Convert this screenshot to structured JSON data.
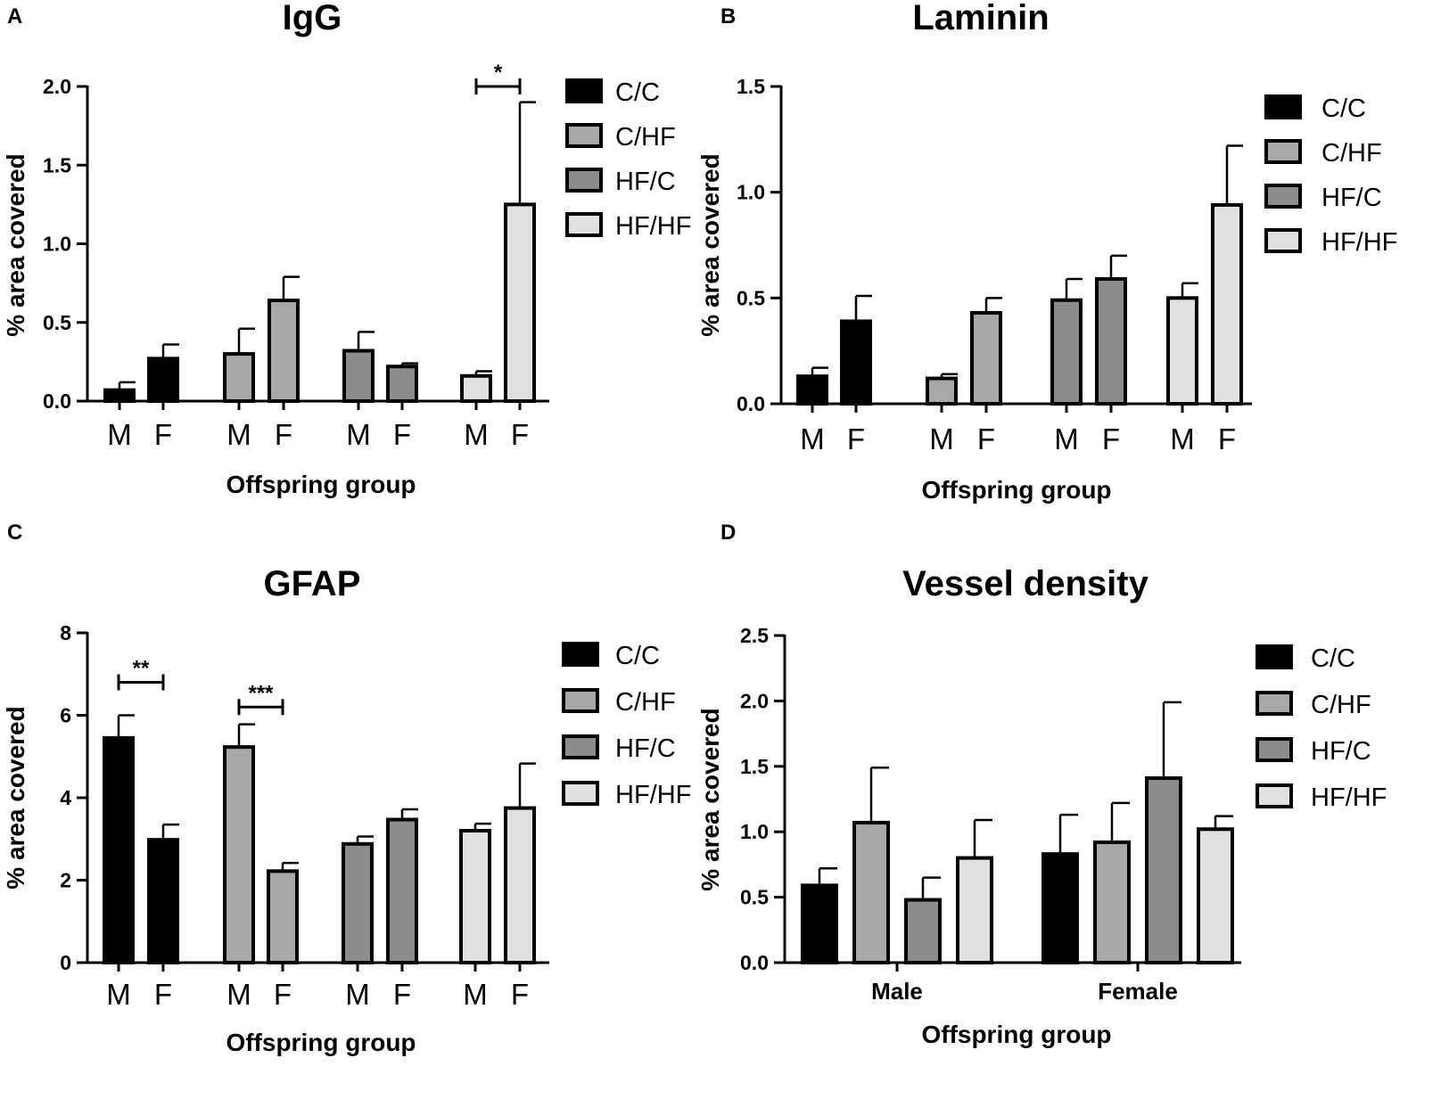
{
  "colors": {
    "C/C": "#000000",
    "C/HF": "#a8a8a8",
    "HF/C": "#8c8c8c",
    "HF/HF": "#e0e0e0"
  },
  "chart_data": [
    {
      "panel": "A",
      "type": "bar",
      "title": "IgG",
      "xlabel": "Offspring group",
      "ylabel": "% area covered",
      "ylim": [
        0,
        2.0
      ],
      "yticks": [
        "0.0",
        "0.5",
        "1.0",
        "1.5",
        "2.0"
      ],
      "legend": [
        "C/C",
        "C/HF",
        "HF/C",
        "HF/HF"
      ],
      "bars": [
        {
          "label": "M",
          "group": "C/C",
          "value": 0.07,
          "error": 0.05
        },
        {
          "label": "F",
          "group": "C/C",
          "value": 0.27,
          "error": 0.09
        },
        {
          "label": "M",
          "group": "C/HF",
          "value": 0.3,
          "error": 0.16
        },
        {
          "label": "F",
          "group": "C/HF",
          "value": 0.64,
          "error": 0.15
        },
        {
          "label": "M",
          "group": "HF/C",
          "value": 0.32,
          "error": 0.12
        },
        {
          "label": "F",
          "group": "HF/C",
          "value": 0.22,
          "error": 0.02
        },
        {
          "label": "M",
          "group": "HF/HF",
          "value": 0.16,
          "error": 0.03
        },
        {
          "label": "F",
          "group": "HF/HF",
          "value": 1.25,
          "error": 0.65
        }
      ],
      "significance": [
        {
          "from": 6,
          "to": 7,
          "text": "*",
          "y": 2.0
        }
      ]
    },
    {
      "panel": "B",
      "type": "bar",
      "title": "Laminin",
      "xlabel": "Offspring group",
      "ylabel": "% area covered",
      "ylim": [
        0,
        1.5
      ],
      "yticks": [
        "0.0",
        "0.5",
        "1.0",
        "1.5"
      ],
      "legend": [
        "C/C",
        "C/HF",
        "HF/C",
        "HF/HF"
      ],
      "bars": [
        {
          "label": "M",
          "group": "C/C",
          "value": 0.13,
          "error": 0.04
        },
        {
          "label": "F",
          "group": "C/C",
          "value": 0.39,
          "error": 0.12
        },
        {
          "label": "M",
          "group": "C/HF",
          "value": 0.12,
          "error": 0.02
        },
        {
          "label": "F",
          "group": "C/HF",
          "value": 0.43,
          "error": 0.07
        },
        {
          "label": "M",
          "group": "HF/C",
          "value": 0.49,
          "error": 0.1
        },
        {
          "label": "F",
          "group": "HF/C",
          "value": 0.59,
          "error": 0.11
        },
        {
          "label": "M",
          "group": "HF/HF",
          "value": 0.5,
          "error": 0.07
        },
        {
          "label": "F",
          "group": "HF/HF",
          "value": 0.94,
          "error": 0.28
        }
      ],
      "significance": []
    },
    {
      "panel": "C",
      "type": "bar",
      "title": "GFAP",
      "xlabel": "Offspring group",
      "ylabel": "% area covered",
      "ylim": [
        0,
        8
      ],
      "yticks": [
        "0",
        "2",
        "4",
        "6",
        "8"
      ],
      "legend": [
        "C/C",
        "C/HF",
        "HF/C",
        "HF/HF"
      ],
      "bars": [
        {
          "label": "M",
          "group": "C/C",
          "value": 5.45,
          "error": 0.55
        },
        {
          "label": "F",
          "group": "C/C",
          "value": 2.98,
          "error": 0.37
        },
        {
          "label": "M",
          "group": "C/HF",
          "value": 5.23,
          "error": 0.55
        },
        {
          "label": "F",
          "group": "C/HF",
          "value": 2.22,
          "error": 0.2
        },
        {
          "label": "M",
          "group": "HF/C",
          "value": 2.88,
          "error": 0.18
        },
        {
          "label": "F",
          "group": "HF/C",
          "value": 3.47,
          "error": 0.25
        },
        {
          "label": "M",
          "group": "HF/HF",
          "value": 3.2,
          "error": 0.17
        },
        {
          "label": "F",
          "group": "HF/HF",
          "value": 3.75,
          "error": 1.08
        }
      ],
      "significance": [
        {
          "from": 0,
          "to": 1,
          "text": "**",
          "y": 6.8
        },
        {
          "from": 2,
          "to": 3,
          "text": "***",
          "y": 6.2
        }
      ]
    },
    {
      "panel": "D",
      "type": "bar",
      "title": "Vessel density",
      "xlabel": "Offspring group",
      "ylabel": "% area covered",
      "ylim": [
        0,
        2.5
      ],
      "yticks": [
        "0.0",
        "0.5",
        "1.0",
        "1.5",
        "2.0",
        "2.5"
      ],
      "legend": [
        "C/C",
        "C/HF",
        "HF/C",
        "HF/HF"
      ],
      "categories": [
        "Male",
        "Female"
      ],
      "series": [
        {
          "name": "C/C",
          "values": [
            0.59,
            0.83
          ],
          "errors": [
            0.13,
            0.3
          ]
        },
        {
          "name": "C/HF",
          "values": [
            1.07,
            0.92
          ],
          "errors": [
            0.42,
            0.3
          ]
        },
        {
          "name": "HF/C",
          "values": [
            0.48,
            1.41
          ],
          "errors": [
            0.17,
            0.58
          ]
        },
        {
          "name": "HF/HF",
          "values": [
            0.8,
            1.02
          ],
          "errors": [
            0.29,
            0.1
          ]
        }
      ],
      "significance": []
    }
  ]
}
